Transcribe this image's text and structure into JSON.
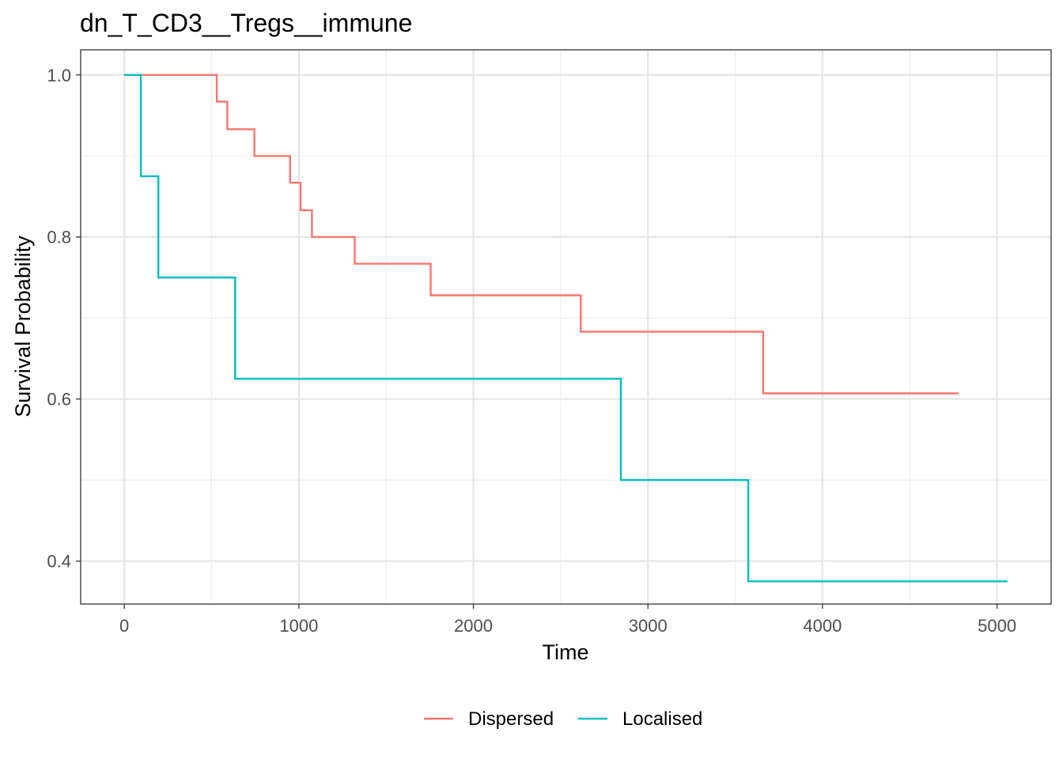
{
  "chart_data": {
    "type": "line",
    "step": true,
    "title": "dn_T_CD3__Tregs__immune",
    "xlabel": "Time",
    "ylabel": "Survival Probability",
    "xlim": [
      -250,
      5310
    ],
    "ylim": [
      0.347,
      1.031
    ],
    "x_ticks": [
      0,
      1000,
      2000,
      3000,
      4000,
      5000
    ],
    "x_tick_labels": [
      "0",
      "1000",
      "2000",
      "3000",
      "4000",
      "5000"
    ],
    "y_ticks": [
      0.4,
      0.6,
      0.8,
      1.0
    ],
    "y_tick_labels": [
      "0.4",
      "0.6",
      "0.8",
      "1.0"
    ],
    "x_minor_ticks": [
      500,
      1500,
      2500,
      3500,
      4500
    ],
    "y_minor_ticks": [
      0.5,
      0.7,
      0.9
    ],
    "grid": true,
    "legend_position": "bottom",
    "series": [
      {
        "name": "Dispersed",
        "color": "#F8766D",
        "x": [
          0,
          530,
          590,
          745,
          950,
          1010,
          1075,
          1320,
          1755,
          2615,
          3660,
          4780
        ],
        "y": [
          1.0,
          0.967,
          0.933,
          0.9,
          0.867,
          0.833,
          0.8,
          0.767,
          0.728,
          0.683,
          0.607,
          0.607
        ]
      },
      {
        "name": "Localised",
        "color": "#00BFC4",
        "x": [
          0,
          95,
          195,
          635,
          2845,
          3575,
          5060
        ],
        "y": [
          1.0,
          0.875,
          0.75,
          0.625,
          0.5,
          0.375,
          0.375
        ]
      }
    ]
  }
}
